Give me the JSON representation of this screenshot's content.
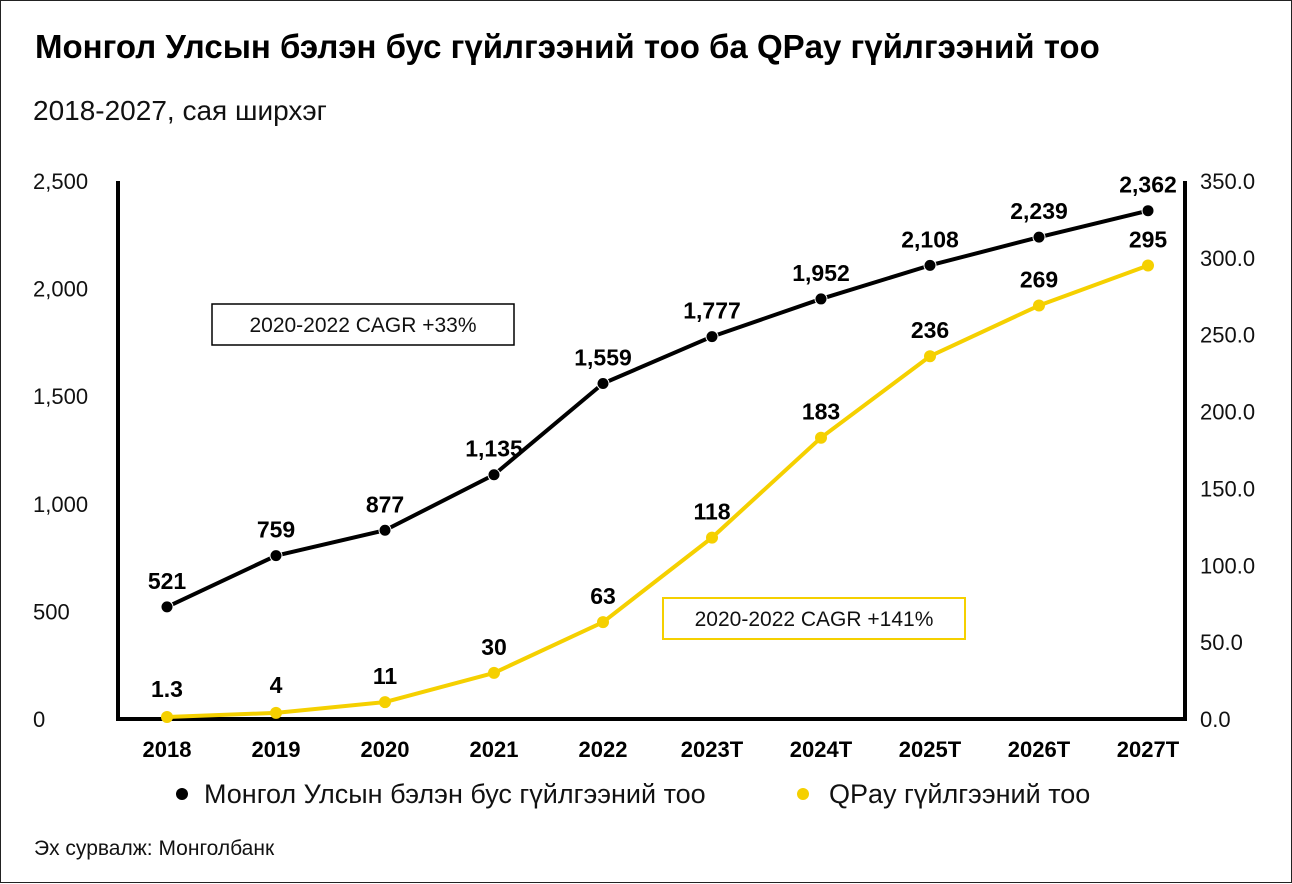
{
  "title": "Монгол Улсын бэлэн бус гүйлгээний тоо ба QPay гүйлгээний тоо",
  "subtitle": "2018-2027, сая ширхэг",
  "source": "Эх сурвалж: Монголбанк",
  "colors": {
    "series1": "#000000",
    "series2": "#F5D000",
    "axis": "#000000"
  },
  "chart_data": {
    "type": "line",
    "categories": [
      "2018",
      "2019",
      "2020",
      "2021",
      "2022",
      "2023T",
      "2024T",
      "2025T",
      "2026T",
      "2027T"
    ],
    "x_tick_labels": [
      "2018",
      "2019",
      "2020",
      "2021",
      "2022",
      "2023T",
      "2024T",
      "2025T",
      "2026T",
      "2027T"
    ],
    "y_left": {
      "range": [
        0,
        2500
      ],
      "ticks": [
        0,
        500,
        1000,
        1500,
        2000,
        2500
      ],
      "tick_labels": [
        "0",
        "500",
        "1,000",
        "1,500",
        "2,000",
        "2,500"
      ]
    },
    "y_right": {
      "range": [
        0,
        350
      ],
      "ticks": [
        0,
        50,
        100,
        150,
        200,
        250,
        300,
        350
      ],
      "tick_labels": [
        "0.0",
        "50.0",
        "100.0",
        "150.0",
        "200.0",
        "250.0",
        "300.0",
        "350.0"
      ]
    },
    "series": [
      {
        "name": "Монгол Улсын бэлэн бус гүйлгээний тоо",
        "axis": "left",
        "values": [
          521,
          759,
          877,
          1135,
          1559,
          1777,
          1952,
          2108,
          2239,
          2362
        ],
        "labels": [
          "521",
          "759",
          "877",
          "1,135",
          "1,559",
          "1,777",
          "1,952",
          "2,108",
          "2,239",
          "2,362"
        ]
      },
      {
        "name": "QPay гүйлгээний тоо",
        "axis": "right",
        "values": [
          1.3,
          4,
          11,
          30,
          63,
          118,
          183,
          236,
          269,
          295
        ],
        "labels": [
          "1.3",
          "4",
          "11",
          "30",
          "63",
          "118",
          "183",
          "236",
          "269",
          "295"
        ]
      }
    ],
    "annotations": [
      {
        "text": "2020-2022 CAGR +33%",
        "series": "Монгол Улсын бэлэн бус гүйлгээний тоо"
      },
      {
        "text": "2020-2022 CAGR +141%",
        "series": "QPay гүйлгээний тоо"
      }
    ],
    "legend_position": "bottom",
    "grid": false
  }
}
